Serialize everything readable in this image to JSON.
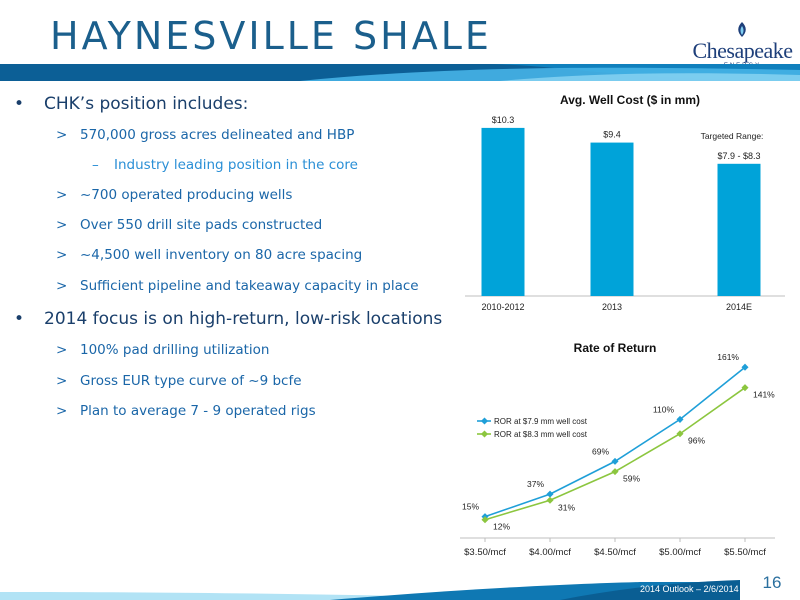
{
  "title": "HAYNESVILLE SHALE",
  "logo": {
    "name": "Chesapeake",
    "sub": "ENERGY"
  },
  "bullets": {
    "b1_label": "CHK’s position includes:",
    "b1_items": [
      "570,000 gross acres delineated and HBP",
      "~700 operated producing wells",
      "Over 550 drill site pads constructed",
      "~4,500 well inventory on 80 acre spacing",
      "Sufficient pipeline and takeaway capacity in place"
    ],
    "b1_sub": "Industry leading position in the core",
    "b2_label": "2014 focus is on high-return, low-risk locations",
    "b2_items": [
      "100% pad drilling utilization",
      "Gross EUR type curve of ~9 bcfe",
      "Plan to average 7 - 9 operated rigs"
    ],
    "bullet_mark": "•",
    "sub_mark": ">",
    "subsub_mark": "–"
  },
  "chart_data": [
    {
      "type": "bar",
      "title": "Avg. Well Cost ($ in mm)",
      "categories": [
        "2010-2012",
        "2013",
        "2014E"
      ],
      "values": [
        10.3,
        9.4,
        8.1
      ],
      "value_labels": [
        "$10.3",
        "$9.4",
        "$7.9 - $8.3"
      ],
      "annotation": "Targeted Range:",
      "ylim": [
        0,
        10.6
      ],
      "color": "#00a3d9"
    },
    {
      "type": "line",
      "title": "Rate of Return",
      "categories": [
        "$3.50/mcf",
        "$4.00/mcf",
        "$4.50/mcf",
        "$5.00/mcf",
        "$5.50/mcf"
      ],
      "series": [
        {
          "name": "ROR at $7.9 mm well cost",
          "values": [
            15,
            37,
            69,
            110,
            161
          ],
          "labels": [
            "15%",
            "37%",
            "69%",
            "110%",
            "161%"
          ],
          "color": "#1f9fd8"
        },
        {
          "name": "ROR at $8.3 mm well cost",
          "values": [
            12,
            31,
            59,
            96,
            141
          ],
          "labels": [
            "12%",
            "31%",
            "59%",
            "96%",
            "141%"
          ],
          "color": "#8cc63f"
        }
      ],
      "ylim": [
        0,
        170
      ],
      "legend": "top-left"
    }
  ],
  "footer": {
    "text": "2014 Outlook – 2/6/2014",
    "page": "16"
  },
  "colors": {
    "title": "#1b5f8c",
    "band_dark": "#0e6aa2",
    "band_light": "#5bc0e8"
  }
}
